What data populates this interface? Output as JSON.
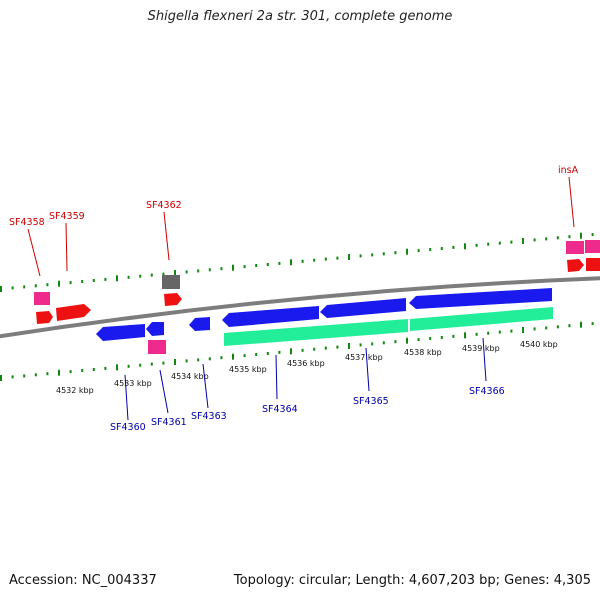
{
  "title": "Shigella flexneri 2a str. 301, complete genome",
  "footer": {
    "accession": "Accession: NC_004337",
    "stats": "Topology: circular; Length: 4,607,203 bp; Genes: 4,305"
  },
  "colors": {
    "backbone": "#8a8a8a",
    "forward_gene": "#ff0000",
    "reverse_gene": "#1a1aee",
    "rna_or_other": "#ee2a8c",
    "pseudogene": "#666666",
    "operon_bar": "#22ee99",
    "top_label": "#cc0000",
    "bottom_label": "#0000aa",
    "tick_forward": "#118811"
  },
  "scale": {
    "unit": "kbp",
    "labels": [
      "4532 kbp",
      "4533 kbp",
      "4534 kbp",
      "4535 kbp",
      "4536 kbp",
      "4537 kbp",
      "4538 kbp",
      "4539 kbp",
      "4540 kbp"
    ]
  },
  "gene_labels_top": [
    "SF4358",
    "SF4359",
    "SF4362",
    "insA"
  ],
  "gene_labels_bottom": [
    "SF4360",
    "SF4361",
    "SF4363",
    "SF4364",
    "SF4365",
    "SF4366"
  ]
}
